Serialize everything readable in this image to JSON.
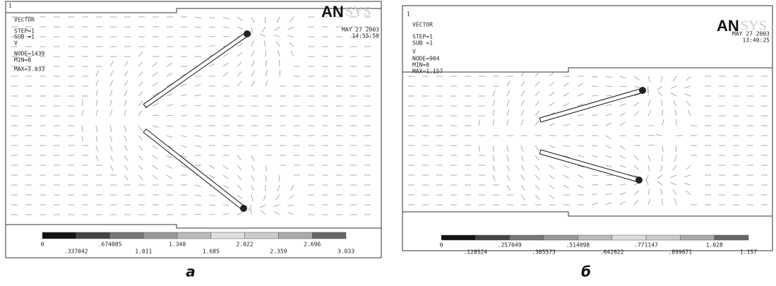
{
  "panels": [
    {
      "window": "1",
      "title": "VECTOR",
      "step": "STEP=1",
      "sub": "SUB =1",
      "variable": "V",
      "node": "NODE=1439",
      "min": "MIN=0",
      "max": "MAX=3.033",
      "date": "MAY 27 2003",
      "time": "14:55:58",
      "logo_bold": "AN",
      "logo_light": "SYS",
      "colorbar_top": [
        "0",
        ".674085",
        "1.348",
        "2.022",
        "2.696"
      ],
      "colorbar_bottom": [
        ".337042",
        "1.011",
        "1.685",
        "2.359",
        "3.033"
      ],
      "caption": "а"
    },
    {
      "window": "1",
      "title": "VECTOR",
      "step": "STEP=1",
      "sub": "SUB =1",
      "variable": "V",
      "node": "NODE=904",
      "min": "MIN=0",
      "max": "MAX=1.157",
      "date": "MAY 27 2003",
      "time": "13:40:25",
      "logo_bold": "AN",
      "logo_light": "SYS",
      "colorbar_top": [
        "0",
        ".257049",
        ".514098",
        ".771147",
        "1.028"
      ],
      "colorbar_bottom": [
        ".128524",
        ".385573",
        ".642622",
        ".899671",
        "1.157"
      ],
      "caption": "б"
    }
  ]
}
